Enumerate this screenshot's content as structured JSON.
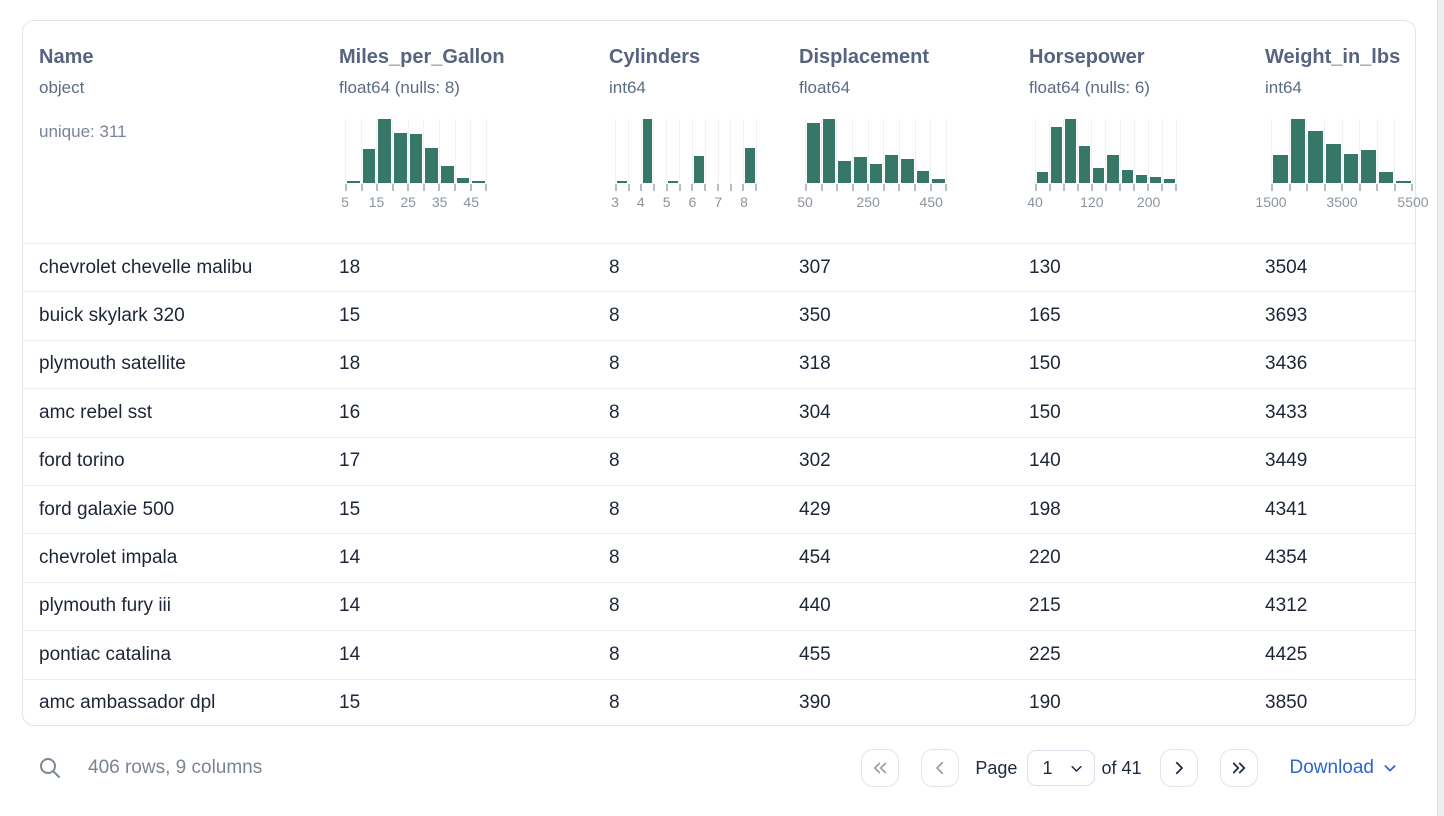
{
  "colors": {
    "histogram_bar": "#377767",
    "link_blue": "#2e65d4",
    "header_text": "#57647f",
    "row_text": "#1d2637"
  },
  "table": {
    "columns": [
      {
        "name": "Name",
        "type": "object",
        "extra": "unique: 311",
        "histogram": null
      },
      {
        "name": "Miles_per_Gallon",
        "type": "float64 (nulls: 8)",
        "extra": null,
        "histogram": {
          "type": "bar",
          "bin_edges": [
            5,
            10,
            15,
            20,
            25,
            30,
            35,
            40,
            45,
            50
          ],
          "values_pct_of_max": [
            2,
            53,
            100,
            78,
            77,
            55,
            27,
            8,
            2
          ],
          "tick_labels": [
            {
              "pos": 0,
              "label": "5"
            },
            {
              "pos": 2,
              "label": "15"
            },
            {
              "pos": 4,
              "label": "25"
            },
            {
              "pos": 6,
              "label": "35"
            },
            {
              "pos": 8,
              "label": "45"
            }
          ]
        }
      },
      {
        "name": "Cylinders",
        "type": "int64",
        "extra": null,
        "histogram": {
          "type": "bar",
          "bin_edges": [
            3,
            3.5,
            4,
            4.5,
            5,
            5.5,
            6,
            6.5,
            7,
            7.5,
            8,
            8.5
          ],
          "values_pct_of_max": [
            2,
            0,
            100,
            0,
            2,
            0,
            42,
            0,
            0,
            0,
            55
          ],
          "tick_labels": [
            {
              "pos": 0,
              "label": "3"
            },
            {
              "pos": 2,
              "label": "4"
            },
            {
              "pos": 4,
              "label": "5"
            },
            {
              "pos": 6,
              "label": "6"
            },
            {
              "pos": 8,
              "label": "7"
            },
            {
              "pos": 10,
              "label": "8"
            }
          ]
        }
      },
      {
        "name": "Displacement",
        "type": "float64",
        "extra": null,
        "histogram": {
          "type": "bar",
          "bin_edges": [
            50,
            100,
            150,
            200,
            250,
            300,
            350,
            400,
            450,
            500
          ],
          "values_pct_of_max": [
            93,
            100,
            34,
            41,
            29,
            44,
            38,
            19,
            7
          ],
          "tick_labels": [
            {
              "pos": 0,
              "label": "50"
            },
            {
              "pos": 4,
              "label": "250"
            },
            {
              "pos": 8,
              "label": "450"
            }
          ]
        }
      },
      {
        "name": "Horsepower",
        "type": "float64 (nulls: 6)",
        "extra": null,
        "histogram": {
          "type": "bar",
          "bin_edges": [
            40,
            60,
            80,
            100,
            120,
            140,
            160,
            180,
            200,
            220,
            240
          ],
          "values_pct_of_max": [
            17,
            87,
            100,
            58,
            23,
            43,
            21,
            13,
            9,
            7
          ],
          "tick_labels": [
            {
              "pos": 0,
              "label": "40"
            },
            {
              "pos": 4,
              "label": "120"
            },
            {
              "pos": 8,
              "label": "200"
            }
          ]
        }
      },
      {
        "name": "Weight_in_lbs",
        "type": "int64",
        "extra": null,
        "histogram": {
          "type": "bar",
          "bin_edges": [
            1500,
            2000,
            2500,
            3000,
            3500,
            4000,
            4500,
            5000,
            5500
          ],
          "values_pct_of_max": [
            43,
            100,
            82,
            61,
            46,
            51,
            17,
            3
          ],
          "tick_labels": [
            {
              "pos": 0,
              "label": "1500"
            },
            {
              "pos": 4,
              "label": "3500"
            },
            {
              "pos": 8,
              "label": "5500"
            }
          ]
        }
      }
    ],
    "rows": [
      [
        "chevrolet chevelle malibu",
        "18",
        "8",
        "307",
        "130",
        "3504"
      ],
      [
        "buick skylark 320",
        "15",
        "8",
        "350",
        "165",
        "3693"
      ],
      [
        "plymouth satellite",
        "18",
        "8",
        "318",
        "150",
        "3436"
      ],
      [
        "amc rebel sst",
        "16",
        "8",
        "304",
        "150",
        "3433"
      ],
      [
        "ford torino",
        "17",
        "8",
        "302",
        "140",
        "3449"
      ],
      [
        "ford galaxie 500",
        "15",
        "8",
        "429",
        "198",
        "4341"
      ],
      [
        "chevrolet impala",
        "14",
        "8",
        "454",
        "220",
        "4354"
      ],
      [
        "plymouth fury iii",
        "14",
        "8",
        "440",
        "215",
        "4312"
      ],
      [
        "pontiac catalina",
        "14",
        "8",
        "455",
        "225",
        "4425"
      ],
      [
        "amc ambassador dpl",
        "15",
        "8",
        "390",
        "190",
        "3850"
      ]
    ]
  },
  "footer": {
    "summary": "406 rows, 9 columns",
    "page_label": "Page",
    "page_value": "1",
    "of_label": "of 41",
    "download_label": "Download"
  }
}
